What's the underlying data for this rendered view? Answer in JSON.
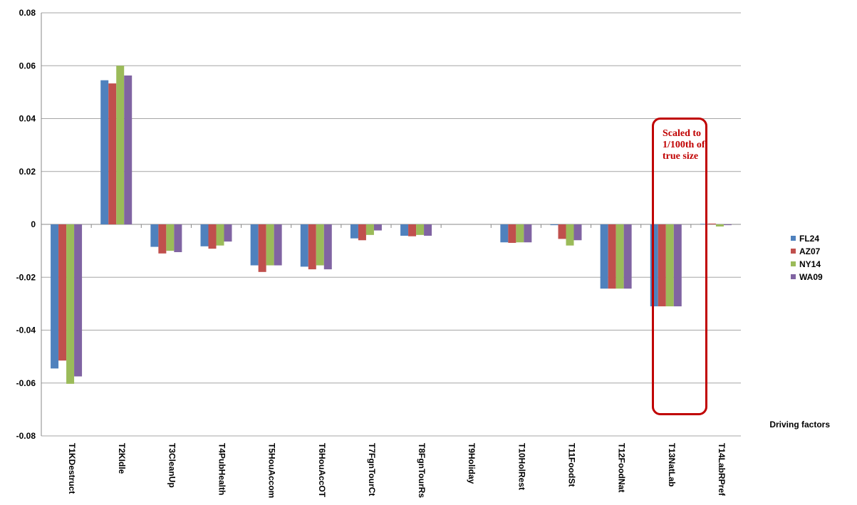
{
  "chart_data": {
    "type": "bar",
    "categories": [
      "T1KDestruct",
      "T2KIdle",
      "T3CleanUp",
      "T4PubHealth",
      "T5HouAccom",
      "T6HouAccOT",
      "T7FgnTourCt",
      "T8FgnTourRs",
      "T9Holiday",
      "T10HolRest",
      "T11FoodSt",
      "T12FoodNat",
      "T13NatLab",
      "T14LabRPref"
    ],
    "series": [
      {
        "name": "FL24",
        "color": "#4f81bd",
        "values": [
          -0.0545,
          0.0545,
          -0.0085,
          -0.0083,
          -0.0155,
          -0.016,
          -0.0053,
          -0.0043,
          0,
          -0.0068,
          -0.0003,
          -0.0243,
          -0.031,
          0.0002
        ]
      },
      {
        "name": "AZ07",
        "color": "#c0504d",
        "values": [
          -0.0515,
          0.0533,
          -0.011,
          -0.0092,
          -0.018,
          -0.017,
          -0.006,
          -0.0045,
          0,
          -0.007,
          -0.0055,
          -0.0243,
          -0.031,
          0.0003
        ]
      },
      {
        "name": "NY14",
        "color": "#9bbb59",
        "values": [
          -0.0603,
          0.06,
          -0.01,
          -0.008,
          -0.0155,
          -0.0155,
          -0.004,
          -0.004,
          0,
          -0.0068,
          -0.008,
          -0.0243,
          -0.031,
          -0.0008
        ]
      },
      {
        "name": "WA09",
        "color": "#8064a2",
        "values": [
          -0.0575,
          0.0563,
          -0.0105,
          -0.0065,
          -0.0155,
          -0.017,
          -0.0023,
          -0.0043,
          0,
          -0.0068,
          -0.006,
          -0.0243,
          -0.031,
          -0.0003
        ]
      }
    ],
    "x_label": "Driving factors",
    "annotation": "Scaled to 1/100th of true size",
    "ylim": [
      -0.08,
      0.08
    ],
    "yticks": [
      -0.08,
      -0.06,
      -0.04,
      -0.02,
      0,
      0.02,
      0.04,
      0.06,
      0.08
    ],
    "grid": true,
    "legend": "right"
  }
}
